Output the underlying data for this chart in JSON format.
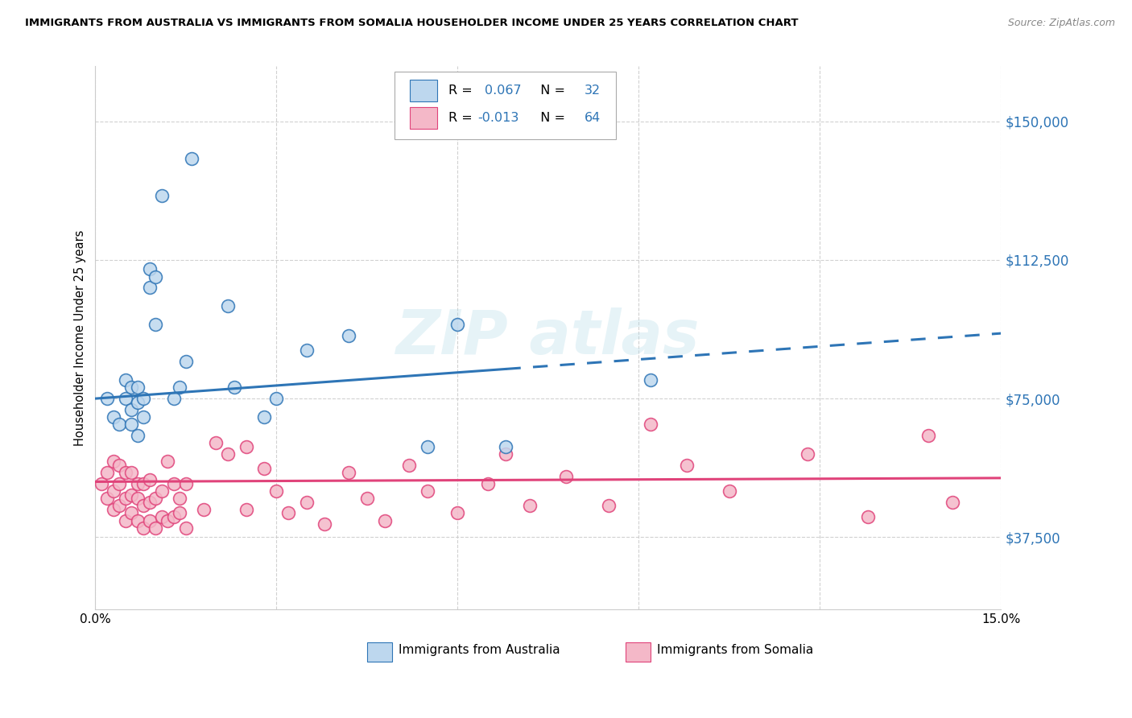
{
  "title": "IMMIGRANTS FROM AUSTRALIA VS IMMIGRANTS FROM SOMALIA HOUSEHOLDER INCOME UNDER 25 YEARS CORRELATION CHART",
  "source": "Source: ZipAtlas.com",
  "ylabel": "Householder Income Under 25 years",
  "xlim": [
    0.0,
    0.15
  ],
  "ylim": [
    18000,
    165000
  ],
  "yticks": [
    37500,
    75000,
    112500,
    150000
  ],
  "ytick_labels": [
    "$37,500",
    "$75,000",
    "$112,500",
    "$150,000"
  ],
  "xticks": [
    0.0,
    0.03,
    0.06,
    0.09,
    0.12,
    0.15
  ],
  "xtick_labels": [
    "0.0%",
    "",
    "",
    "",
    "",
    "15.0%"
  ],
  "australia_R": 0.067,
  "australia_N": 32,
  "somalia_R": -0.013,
  "somalia_N": 64,
  "australia_color": "#bdd7ee",
  "somalia_color": "#f4b8c8",
  "trendline_australia_color": "#2e75b6",
  "trendline_somalia_color": "#e0437a",
  "background_color": "#ffffff",
  "grid_color": "#cccccc",
  "legend_text_color": "#2e75b6",
  "australia_x": [
    0.002,
    0.003,
    0.004,
    0.005,
    0.005,
    0.006,
    0.006,
    0.006,
    0.007,
    0.007,
    0.007,
    0.008,
    0.008,
    0.009,
    0.009,
    0.01,
    0.01,
    0.011,
    0.013,
    0.014,
    0.015,
    0.016,
    0.022,
    0.023,
    0.028,
    0.03,
    0.035,
    0.042,
    0.055,
    0.06,
    0.068,
    0.092
  ],
  "australia_y": [
    75000,
    70000,
    68000,
    80000,
    75000,
    72000,
    68000,
    78000,
    65000,
    74000,
    78000,
    70000,
    75000,
    105000,
    110000,
    108000,
    95000,
    130000,
    75000,
    78000,
    85000,
    140000,
    100000,
    78000,
    70000,
    75000,
    88000,
    92000,
    62000,
    95000,
    62000,
    80000
  ],
  "somalia_x": [
    0.001,
    0.002,
    0.002,
    0.003,
    0.003,
    0.003,
    0.004,
    0.004,
    0.004,
    0.005,
    0.005,
    0.005,
    0.006,
    0.006,
    0.006,
    0.007,
    0.007,
    0.007,
    0.008,
    0.008,
    0.008,
    0.009,
    0.009,
    0.009,
    0.01,
    0.01,
    0.011,
    0.011,
    0.012,
    0.012,
    0.013,
    0.013,
    0.014,
    0.014,
    0.015,
    0.015,
    0.018,
    0.02,
    0.022,
    0.025,
    0.025,
    0.028,
    0.03,
    0.032,
    0.035,
    0.038,
    0.042,
    0.045,
    0.048,
    0.052,
    0.055,
    0.06,
    0.065,
    0.068,
    0.072,
    0.078,
    0.085,
    0.092,
    0.098,
    0.105,
    0.118,
    0.128,
    0.138,
    0.142
  ],
  "somalia_y": [
    52000,
    48000,
    55000,
    45000,
    50000,
    58000,
    46000,
    52000,
    57000,
    42000,
    48000,
    55000,
    44000,
    49000,
    55000,
    42000,
    48000,
    52000,
    40000,
    46000,
    52000,
    42000,
    47000,
    53000,
    40000,
    48000,
    43000,
    50000,
    42000,
    58000,
    43000,
    52000,
    44000,
    48000,
    40000,
    52000,
    45000,
    63000,
    60000,
    45000,
    62000,
    56000,
    50000,
    44000,
    47000,
    41000,
    55000,
    48000,
    42000,
    57000,
    50000,
    44000,
    52000,
    60000,
    46000,
    54000,
    46000,
    68000,
    57000,
    50000,
    60000,
    43000,
    65000,
    47000
  ]
}
